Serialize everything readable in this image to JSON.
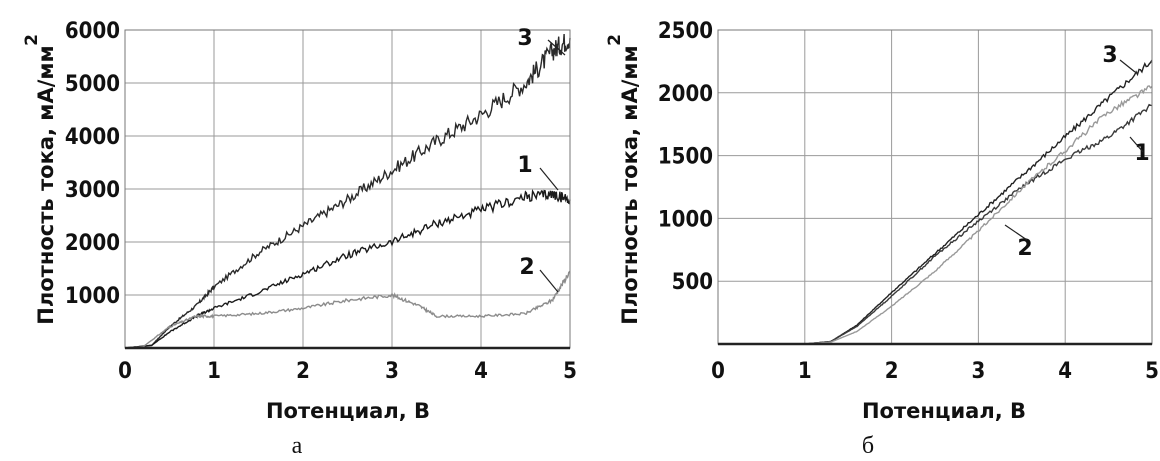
{
  "chart_data": [
    {
      "type": "line",
      "caption": "а",
      "xlabel": "Потенциал, В",
      "ylabel": "Плотность тока, мА/мм",
      "ylabel_superscript": "2",
      "xlim": [
        0,
        5
      ],
      "ylim": [
        0,
        6000
      ],
      "xticks": [
        "0",
        "1",
        "2",
        "3",
        "4",
        "5"
      ],
      "yticks": [
        "1000",
        "2000",
        "3000",
        "4000",
        "5000",
        "6000"
      ],
      "grid": true,
      "series": [
        {
          "name": "3",
          "color": "#2a2a2a",
          "x": [
            0,
            0.3,
            0.5,
            0.8,
            1.0,
            1.5,
            2.0,
            2.5,
            3.0,
            3.5,
            4.0,
            4.5,
            4.8,
            5.0
          ],
          "y": [
            0,
            50,
            400,
            800,
            1150,
            1800,
            2300,
            2800,
            3350,
            3900,
            4400,
            5000,
            5600,
            5850
          ]
        },
        {
          "name": "1",
          "color": "#1a1a1a",
          "x": [
            0,
            0.3,
            0.5,
            0.8,
            1.0,
            1.5,
            2.0,
            2.5,
            3.0,
            3.5,
            4.0,
            4.5,
            4.8,
            5.0
          ],
          "y": [
            0,
            50,
            300,
            600,
            750,
            1050,
            1400,
            1750,
            2000,
            2350,
            2600,
            2850,
            2900,
            2800
          ]
        },
        {
          "name": "2",
          "color": "#8c8c8c",
          "x": [
            0,
            0.2,
            0.5,
            0.8,
            1.0,
            1.5,
            2.0,
            2.5,
            3.0,
            3.3,
            3.5,
            4.0,
            4.5,
            4.8,
            5.0
          ],
          "y": [
            0,
            20,
            400,
            600,
            600,
            650,
            750,
            900,
            1000,
            800,
            600,
            600,
            650,
            900,
            1450
          ]
        }
      ]
    },
    {
      "type": "line",
      "caption": "б",
      "xlabel": "Потенциал, В",
      "ylabel": "Плотность тока, мА/мм",
      "ylabel_superscript": "2",
      "xlim": [
        0,
        5
      ],
      "ylim": [
        0,
        2500
      ],
      "xticks": [
        "0",
        "1",
        "2",
        "3",
        "4",
        "5"
      ],
      "yticks": [
        "500",
        "1000",
        "1500",
        "2000",
        "2500"
      ],
      "grid": true,
      "series": [
        {
          "name": "3",
          "color": "#222222",
          "x": [
            0,
            1.0,
            1.3,
            1.6,
            2.0,
            2.5,
            3.0,
            3.5,
            4.0,
            4.5,
            5.0
          ],
          "y": [
            0,
            0,
            20,
            150,
            410,
            720,
            1030,
            1340,
            1650,
            1960,
            2260
          ]
        },
        {
          "name": "1",
          "color": "#3a3a3a",
          "x": [
            0,
            1.0,
            1.3,
            1.6,
            2.0,
            2.5,
            3.0,
            3.5,
            4.0,
            4.5,
            5.0
          ],
          "y": [
            0,
            0,
            20,
            140,
            380,
            700,
            980,
            1250,
            1470,
            1650,
            1900
          ]
        },
        {
          "name": "2",
          "color": "#999999",
          "x": [
            0,
            1.0,
            1.3,
            1.6,
            2.0,
            2.5,
            3.0,
            3.5,
            4.0,
            4.5,
            5.0
          ],
          "y": [
            0,
            0,
            15,
            100,
            300,
            580,
            900,
            1240,
            1540,
            1850,
            2050
          ]
        }
      ]
    }
  ]
}
